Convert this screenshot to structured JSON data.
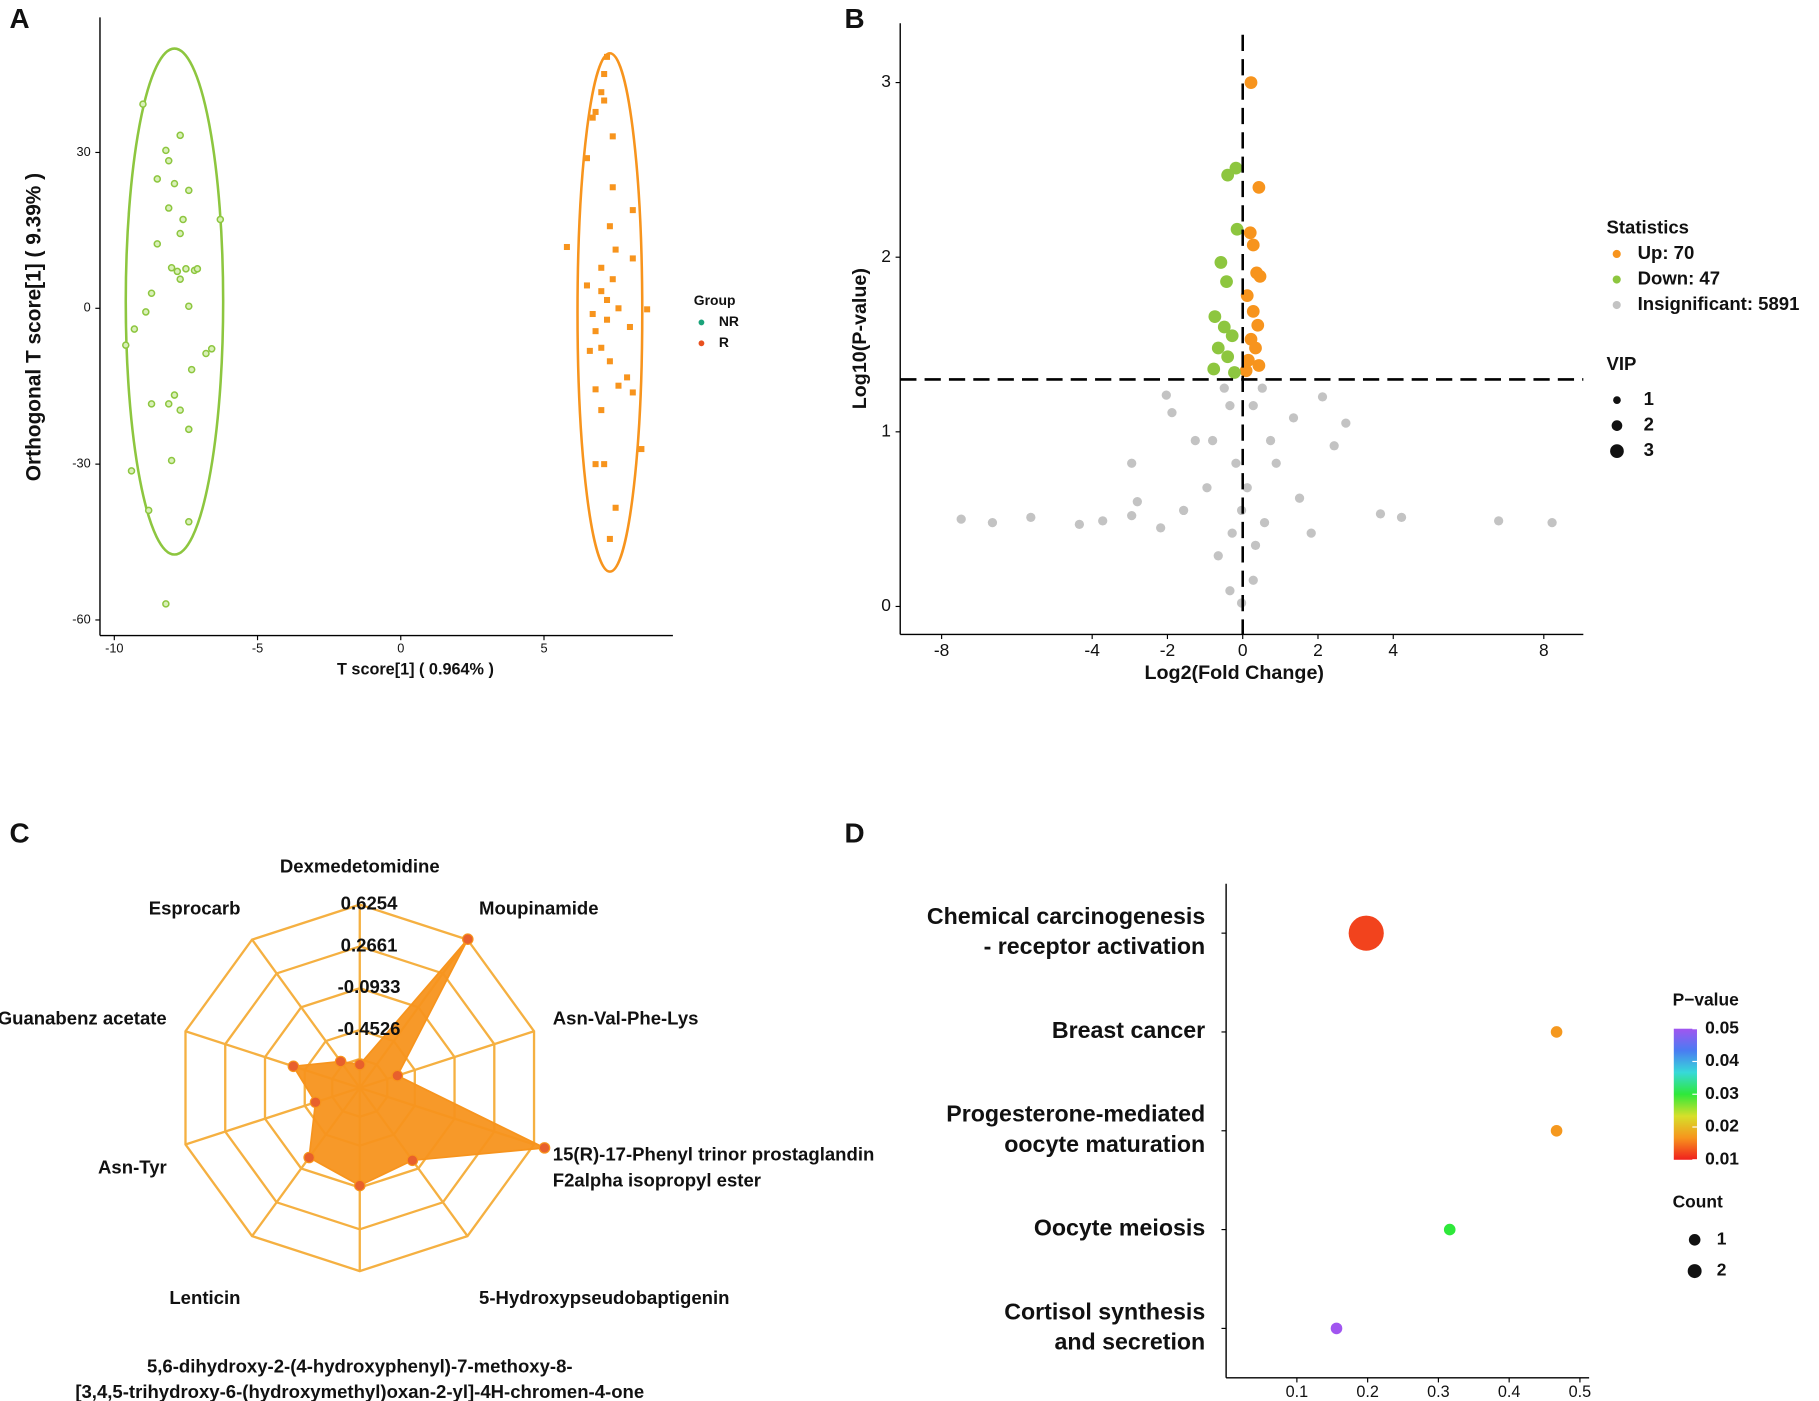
{
  "chart_data": [
    {
      "type": "scatter",
      "label": "A",
      "x_label": "T score[1] ( 0.964% )",
      "y_label": "Orthogonal T score[1] ( 9.39% )",
      "xlim": [
        -10.5,
        9.5
      ],
      "ylim": [
        -63,
        56
      ],
      "xticks": [
        -10,
        -5,
        0,
        5
      ],
      "yticks": [
        -60,
        -30,
        0,
        30
      ],
      "legend_title": "Group",
      "series": [
        {
          "name": "NR",
          "color": "#8dc63f",
          "legend_color": "#1aa37a",
          "marker": "circle",
          "ellipse": {
            "cx": -7.9,
            "cy": 1.3,
            "rx": 1.7,
            "ry": 48.7
          },
          "x": [
            -9.0,
            -8.2,
            -8.1,
            -7.7,
            -8.5,
            -7.9,
            -7.4,
            -8.1,
            -6.3,
            -7.6,
            -7.7,
            -8.5,
            -8.0,
            -7.8,
            -7.5,
            -7.2,
            -7.1,
            -7.7,
            -8.7,
            -8.9,
            -7.4,
            -9.3,
            -9.6,
            -6.6,
            -6.8,
            -7.3,
            -7.9,
            -8.7,
            -8.1,
            -7.7,
            -7.4,
            -8.0,
            -9.4,
            -8.8,
            -7.4,
            -8.2
          ],
          "values": [
            39.3,
            30.4,
            28.4,
            33.3,
            24.9,
            24,
            22.7,
            19.3,
            17.1,
            17.1,
            14.4,
            12.4,
            7.8,
            7.1,
            7.6,
            7.3,
            7.6,
            5.6,
            2.9,
            -0.7,
            0.4,
            -4,
            -7.1,
            -7.8,
            -8.7,
            -11.8,
            -16.7,
            -18.4,
            -18.4,
            -19.6,
            -23.3,
            -29.3,
            -31.3,
            -38.9,
            -41.1,
            -56.9
          ]
        },
        {
          "name": "R",
          "color": "#f7941d",
          "legend_color": "#e8501f",
          "marker": "square",
          "ellipse": {
            "cx": 7.3,
            "cy": -0.8,
            "rx": 1.13,
            "ry": 49.9
          },
          "x": [
            7.2,
            7.1,
            7.0,
            7.1,
            6.8,
            6.7,
            7.4,
            6.5,
            7.4,
            8.1,
            7.3,
            5.8,
            7.5,
            8.1,
            7.0,
            7.4,
            6.5,
            7.0,
            7.2,
            7.6,
            8.6,
            6.7,
            7.2,
            8.0,
            6.8,
            7.0,
            6.6,
            7.3,
            7.9,
            7.6,
            6.8,
            8.1,
            7.0,
            8.4,
            6.8,
            7.1,
            7.5,
            7.3
          ],
          "values": [
            48.4,
            45.1,
            41.6,
            40,
            37.8,
            36.7,
            33.1,
            28.9,
            23.3,
            18.9,
            15.8,
            11.8,
            11.3,
            9.6,
            7.8,
            5.6,
            4.4,
            3.3,
            1.6,
            0,
            -0.2,
            -1.1,
            -2.2,
            -3.6,
            -4.4,
            -7.6,
            -8.2,
            -10.2,
            -13.3,
            -14.9,
            -15.6,
            -16.2,
            -19.6,
            -27.1,
            -30,
            -30,
            -38.4,
            -44.4
          ]
        }
      ]
    },
    {
      "type": "scatter",
      "label": "B",
      "x_label": "Log2(Fold Change)",
      "y_label": "Log10(P-value)",
      "xlim": [
        -9.1,
        9.05
      ],
      "ylim": [
        -0.16,
        3.34
      ],
      "xticks": [
        -8,
        -4,
        -2,
        0,
        2,
        4,
        8
      ],
      "yticks": [
        0,
        1,
        2,
        3
      ],
      "hline": 1.3,
      "vline": 0,
      "legend_title": "Statistics",
      "size_title": "VIP",
      "sizes": [
        1,
        2,
        3
      ],
      "series": [
        {
          "name": "Up: 70",
          "color": "#f7941d",
          "marker": "circle",
          "x": [
            0.22,
            0.43,
            0.2,
            0.28,
            0.37,
            0.46,
            0.12,
            0.28,
            0.4,
            0.22,
            0.34,
            0.15,
            0.43,
            0.09
          ],
          "values": [
            3.0,
            2.4,
            2.14,
            2.07,
            1.91,
            1.89,
            1.78,
            1.69,
            1.61,
            1.53,
            1.48,
            1.41,
            1.38,
            1.35
          ]
        },
        {
          "name": "Down: 47",
          "color": "#8dc63f",
          "marker": "circle",
          "x": [
            -0.18,
            -0.4,
            -0.15,
            -0.58,
            -0.43,
            -0.74,
            -0.49,
            -0.28,
            -0.65,
            -0.4,
            -0.77,
            -0.22
          ],
          "values": [
            2.51,
            2.47,
            2.16,
            1.97,
            1.86,
            1.66,
            1.6,
            1.55,
            1.48,
            1.43,
            1.36,
            1.34
          ]
        },
        {
          "name": "Insignificant: 5891",
          "color": "#c3c3c3",
          "marker": "circle",
          "x": [
            -7.48,
            -6.65,
            -5.63,
            -4.34,
            -3.72,
            -2.95,
            -2.8,
            -1.88,
            -2.03,
            -1.26,
            -0.95,
            -0.65,
            -0.34,
            -0.03,
            0.28,
            0.58,
            0.89,
            1.35,
            2.12,
            2.74,
            2.43,
            3.66,
            4.22,
            6.8,
            8.22,
            -0.34,
            0.28,
            -0.18,
            0.12,
            -0.8,
            0.74,
            -1.57,
            1.51,
            -2.18,
            1.82,
            -0.28,
            0.34,
            -0.03,
            -0.49,
            0.52,
            -2.95
          ],
          "values": [
            0.5,
            0.48,
            0.51,
            0.47,
            0.49,
            0.52,
            0.6,
            1.11,
            1.21,
            0.95,
            0.68,
            0.29,
            0.09,
            0.02,
            0.15,
            0.48,
            0.82,
            1.08,
            1.2,
            1.05,
            0.92,
            0.53,
            0.51,
            0.49,
            0.48,
            1.15,
            1.15,
            0.82,
            0.68,
            0.95,
            0.95,
            0.55,
            0.62,
            0.45,
            0.42,
            0.42,
            0.35,
            0.55,
            1.25,
            1.25,
            0.82
          ]
        }
      ]
    },
    {
      "type": "radar",
      "label": "C",
      "categories": [
        "Dexmedetomidine",
        "Moupinamide",
        "Asn-Val-Phe-Lys",
        "15(R)-17-Phenyl trinor prostaglandin\nF2alpha isopropyl ester",
        "5-Hydroxypseudobaptigenin",
        "5,6-dihydroxy-2-(4-hydroxyphenyl)-7-methoxy-8-\n[3,4,5-trihydroxy-6-(hydroxymethyl)oxan-2-yl]-4H-chromen-4-one",
        "Lenticin",
        "Asn-Tyr",
        "Guanabenz acetate",
        "Esprocarb"
      ],
      "values": [
        -0.75,
        0.63,
        -0.61,
        0.72,
        -0.18,
        -0.11,
        -0.21,
        -0.55,
        -0.35,
        -0.67
      ],
      "rlim": [
        -0.95,
        0.6254
      ],
      "rticks": [
        0.6254,
        0.2661,
        -0.0933,
        -0.4526
      ],
      "color": "#f7941d",
      "grid_color": "#f5b041"
    },
    {
      "type": "bubble",
      "label": "D",
      "categories": [
        "Chemical carcinogenesis\n- receptor activation",
        "Breast cancer",
        "Progesterone-mediated\noocyte maturation",
        "Oocyte meiosis",
        "Cortisol synthesis\nand secretion"
      ],
      "values": [
        0.198,
        0.467,
        0.467,
        0.316,
        0.156
      ],
      "counts": [
        2,
        1,
        1,
        1,
        1
      ],
      "pvalues": [
        0.012,
        0.017,
        0.017,
        0.03,
        0.05
      ],
      "xlim": [
        0,
        0.513
      ],
      "xticks": [
        0.1,
        0.2,
        0.3,
        0.4,
        0.5
      ],
      "color_title": "P−value",
      "clim": [
        0.01,
        0.05
      ],
      "cticks": [
        0.05,
        0.04,
        0.03,
        0.02,
        0.01
      ],
      "colormap": [
        "#f0201d",
        "#f7941d",
        "#d6e02a",
        "#2ee83a",
        "#37d9d9",
        "#4a7cf2",
        "#a155f0"
      ],
      "size_title": "Count",
      "size_ticks": [
        1,
        2
      ]
    }
  ]
}
